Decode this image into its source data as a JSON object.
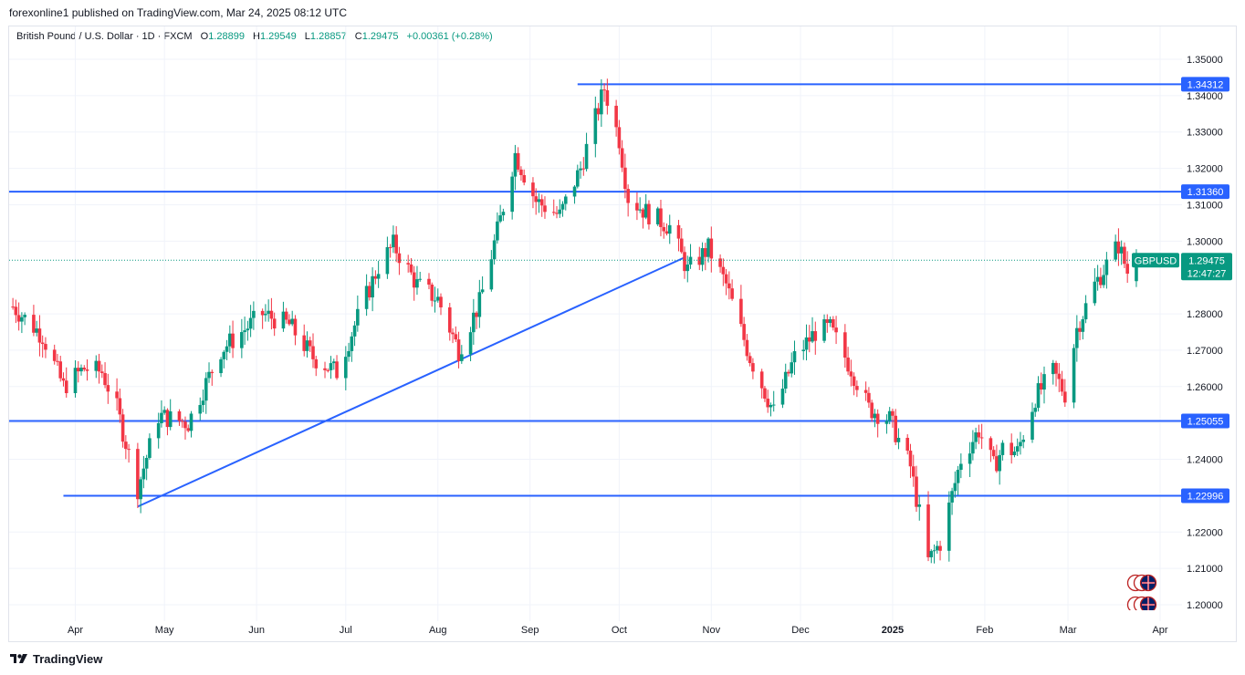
{
  "header": {
    "published_by": "forexonline1 published on TradingView.com, Mar 24, 2025 08:12 UTC"
  },
  "legend": {
    "symbol": "British Pound / U.S. Dollar · 1D · FXCM",
    "open_label": "O",
    "open": "1.28899",
    "high_label": "H",
    "high": "1.29549",
    "low_label": "L",
    "low": "1.28857",
    "close_label": "C",
    "close": "1.29475",
    "change": "+0.00361 (+0.28%)"
  },
  "footer": {
    "brand": "TradingView"
  },
  "colors": {
    "up": "#089981",
    "down": "#f23645",
    "line": "#2962ff",
    "price_tag": "#089981"
  },
  "chart_data": {
    "type": "candlestick",
    "y_axis": {
      "ylim": [
        1.195,
        1.357
      ],
      "ticks": [
        "1.35000",
        "1.34000",
        "1.33000",
        "1.32000",
        "1.31000",
        "1.30000",
        "1.28000",
        "1.27000",
        "1.26000",
        "1.25000",
        "1.24000",
        "1.22000",
        "1.21000",
        "1.20000"
      ],
      "position": "right"
    },
    "x_axis": {
      "labels": [
        {
          "text": "Apr",
          "date": "2024-04-01",
          "bold": false
        },
        {
          "text": "May",
          "date": "2024-05-01",
          "bold": false
        },
        {
          "text": "Jun",
          "date": "2024-06-01",
          "bold": false
        },
        {
          "text": "Jul",
          "date": "2024-07-01",
          "bold": false
        },
        {
          "text": "Aug",
          "date": "2024-08-01",
          "bold": false
        },
        {
          "text": "Sep",
          "date": "2024-09-01",
          "bold": false
        },
        {
          "text": "Oct",
          "date": "2024-10-01",
          "bold": false
        },
        {
          "text": "Nov",
          "date": "2024-11-01",
          "bold": false
        },
        {
          "text": "Dec",
          "date": "2024-12-01",
          "bold": false
        },
        {
          "text": "2025",
          "date": "2025-01-01",
          "bold": true
        },
        {
          "text": "Feb",
          "date": "2025-02-01",
          "bold": false
        },
        {
          "text": "Mar",
          "date": "2025-03-01",
          "bold": false
        },
        {
          "text": "Apr",
          "date": "2025-04-01",
          "bold": false
        }
      ]
    },
    "horizontal_lines": [
      {
        "price": 1.34312,
        "label": "1.34312",
        "from_date": "2024-09-17"
      },
      {
        "price": 1.3136,
        "label": "1.31360",
        "from_date": null
      },
      {
        "price": 1.25055,
        "label": "1.25055",
        "from_date": null
      },
      {
        "price": 1.22996,
        "label": "1.22996",
        "from_date": "2024-03-28"
      }
    ],
    "trend_lines": [
      {
        "from": {
          "date": "2024-04-22",
          "price": 1.227
        },
        "to": {
          "date": "2024-10-23",
          "price": 1.2955
        }
      }
    ],
    "current_price": {
      "symbol": "GBPUSD",
      "price": "1.29475",
      "countdown": "12:47:27"
    },
    "grid": true,
    "anchors": [
      [
        "2024-03-11",
        1.282
      ],
      [
        "2024-03-21",
        1.274
      ],
      [
        "2024-03-28",
        1.26
      ],
      [
        "2024-04-04",
        1.265
      ],
      [
        "2024-04-10",
        1.264
      ],
      [
        "2024-04-15",
        1.254
      ],
      [
        "2024-04-22",
        1.232
      ],
      [
        "2024-04-29",
        1.252
      ],
      [
        "2024-05-09",
        1.25
      ],
      [
        "2024-05-20",
        1.27
      ],
      [
        "2024-06-03",
        1.28
      ],
      [
        "2024-06-12",
        1.277
      ],
      [
        "2024-06-20",
        1.268
      ],
      [
        "2024-06-28",
        1.264
      ],
      [
        "2024-07-05",
        1.279
      ],
      [
        "2024-07-12",
        1.293
      ],
      [
        "2024-07-17",
        1.299
      ],
      [
        "2024-07-25",
        1.288
      ],
      [
        "2024-08-01",
        1.284
      ],
      [
        "2024-08-08",
        1.27
      ],
      [
        "2024-08-15",
        1.283
      ],
      [
        "2024-08-22",
        1.306
      ],
      [
        "2024-08-27",
        1.324
      ],
      [
        "2024-09-03",
        1.311
      ],
      [
        "2024-09-11",
        1.307
      ],
      [
        "2024-09-18",
        1.32
      ],
      [
        "2024-09-26",
        1.342
      ],
      [
        "2024-10-01",
        1.328
      ],
      [
        "2024-10-04",
        1.312
      ],
      [
        "2024-10-10",
        1.308
      ],
      [
        "2024-10-18",
        1.304
      ],
      [
        "2024-10-24",
        1.292
      ],
      [
        "2024-10-31",
        1.298
      ],
      [
        "2024-11-06",
        1.288
      ],
      [
        "2024-11-14",
        1.268
      ],
      [
        "2024-11-22",
        1.253
      ],
      [
        "2024-11-29",
        1.268
      ],
      [
        "2024-12-06",
        1.275
      ],
      [
        "2024-12-11",
        1.276
      ],
      [
        "2024-12-18",
        1.265
      ],
      [
        "2024-12-24",
        1.254
      ],
      [
        "2024-12-31",
        1.251
      ],
      [
        "2025-01-07",
        1.238
      ],
      [
        "2025-01-13",
        1.212
      ],
      [
        "2025-01-17",
        1.217
      ],
      [
        "2025-01-24",
        1.24
      ],
      [
        "2025-01-30",
        1.248
      ],
      [
        "2025-02-04",
        1.238
      ],
      [
        "2025-02-07",
        1.243
      ],
      [
        "2025-02-12",
        1.242
      ],
      [
        "2025-02-18",
        1.257
      ],
      [
        "2025-02-24",
        1.264
      ],
      [
        "2025-02-28",
        1.258
      ],
      [
        "2025-03-04",
        1.276
      ],
      [
        "2025-03-10",
        1.288
      ],
      [
        "2025-03-18",
        1.299
      ],
      [
        "2025-03-21",
        1.2915
      ],
      [
        "2025-03-24",
        1.29475
      ]
    ]
  }
}
